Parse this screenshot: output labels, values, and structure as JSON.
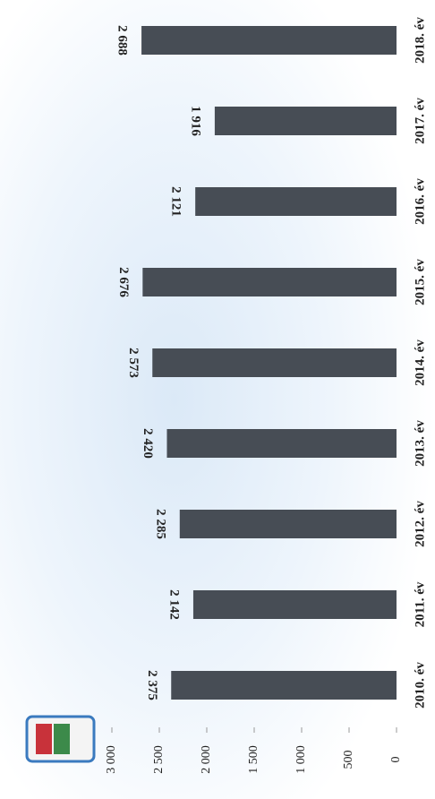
{
  "chart_data": {
    "type": "bar",
    "orientation": "rotated",
    "categories": [
      "2010. év",
      "2011. év",
      "2012. év",
      "2013. év",
      "2014. év",
      "2015. év",
      "2016. év",
      "2017. év",
      "2018. év"
    ],
    "values": [
      2375,
      2142,
      2285,
      2420,
      2573,
      2676,
      2121,
      1916,
      2688
    ],
    "value_labels": [
      "2 375",
      "2 142",
      "2 285",
      "2 420",
      "2 573",
      "2 676",
      "2 121",
      "1 916",
      "2 688"
    ],
    "color": "#474d55",
    "ylim": [
      0,
      3000
    ],
    "yticks": [
      0,
      500,
      {
        "value": 1000,
        "label": "1 000"
      },
      {
        "value": 1500,
        "label": "1 500"
      },
      {
        "value": 2000,
        "label": "2 000"
      },
      {
        "value": 2500,
        "label": "2 500"
      },
      {
        "value": 3000,
        "label": "3 000"
      }
    ]
  }
}
